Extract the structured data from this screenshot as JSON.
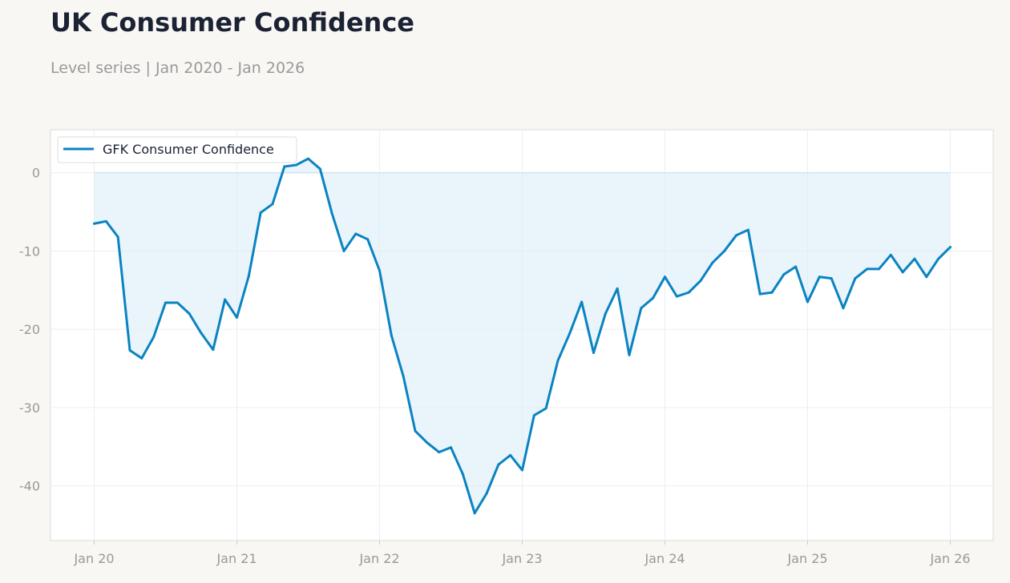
{
  "header": {
    "title": "UK Consumer Confidence",
    "subtitle": "Level series | Jan 2020 - Jan 2026"
  },
  "colors": {
    "line": "#0a83c2",
    "fill": "#dcedf8",
    "grid": "#eeeeee",
    "axis_text": "#999999",
    "background": "#f8f7f4",
    "plot_background": "#ffffff"
  },
  "chart_data": {
    "type": "area",
    "title": "UK Consumer Confidence",
    "subtitle": "Level series | Jan 2020 - Jan 2026",
    "xlabel": "",
    "ylabel": "",
    "x_start": "2020-01",
    "x_end": "2026-01",
    "x": [
      "2020-01",
      "2020-02",
      "2020-03",
      "2020-04",
      "2020-05",
      "2020-06",
      "2020-07",
      "2020-08",
      "2020-09",
      "2020-10",
      "2020-11",
      "2020-12",
      "2021-01",
      "2021-02",
      "2021-03",
      "2021-04",
      "2021-05",
      "2021-06",
      "2021-07",
      "2021-08",
      "2021-09",
      "2021-10",
      "2021-11",
      "2021-12",
      "2022-01",
      "2022-02",
      "2022-03",
      "2022-04",
      "2022-05",
      "2022-06",
      "2022-07",
      "2022-08",
      "2022-09",
      "2022-10",
      "2022-11",
      "2022-12",
      "2023-01",
      "2023-02",
      "2023-03",
      "2023-04",
      "2023-05",
      "2023-06",
      "2023-07",
      "2023-08",
      "2023-09",
      "2023-10",
      "2023-11",
      "2023-12",
      "2024-01",
      "2024-02",
      "2024-03",
      "2024-04",
      "2024-05",
      "2024-06",
      "2024-07",
      "2024-08",
      "2024-09",
      "2024-10",
      "2024-11",
      "2024-12",
      "2025-01",
      "2025-02",
      "2025-03",
      "2025-04",
      "2025-05",
      "2025-06",
      "2025-07",
      "2025-08",
      "2025-09",
      "2025-10",
      "2025-11",
      "2025-12",
      "2026-01"
    ],
    "series": [
      {
        "name": "GFK Consumer Confidence",
        "values": [
          -6.5,
          -6.2,
          -8.2,
          -22.7,
          -23.7,
          -21.0,
          -16.6,
          -16.6,
          -18.0,
          -20.5,
          -22.6,
          -16.2,
          -18.5,
          -13.2,
          -5.1,
          -4.0,
          0.8,
          1.0,
          1.8,
          0.5,
          -5.2,
          -10.0,
          -7.8,
          -8.5,
          -12.5,
          -20.8,
          -26.0,
          -33.0,
          -34.5,
          -35.7,
          -35.1,
          -38.5,
          -43.5,
          -41.0,
          -37.3,
          -36.1,
          -38.0,
          -31.0,
          -30.1,
          -24.0,
          -20.5,
          -16.5,
          -23.0,
          -18.0,
          -14.8,
          -23.3,
          -17.3,
          -16.0,
          -13.3,
          -15.8,
          -15.3,
          -13.8,
          -11.5,
          -10.0,
          -8.0,
          -7.3,
          -15.5,
          -15.3,
          -13.0,
          -12.0,
          -16.5,
          -13.3,
          -13.5,
          -17.3,
          -13.5,
          -12.3,
          -12.3,
          -10.5,
          -12.7,
          -11.0,
          -13.3,
          -11.0,
          -9.5
        ]
      }
    ],
    "xticks": [
      "Jan 20",
      "Jan 21",
      "Jan 22",
      "Jan 23",
      "Jan 24",
      "Jan 25",
      "Jan 26"
    ],
    "yticks": [
      0,
      -10,
      -20,
      -30,
      -40
    ],
    "ylim": [
      -47,
      5.5
    ],
    "grid": true,
    "legend": "top-left",
    "fill": "to-zero"
  }
}
